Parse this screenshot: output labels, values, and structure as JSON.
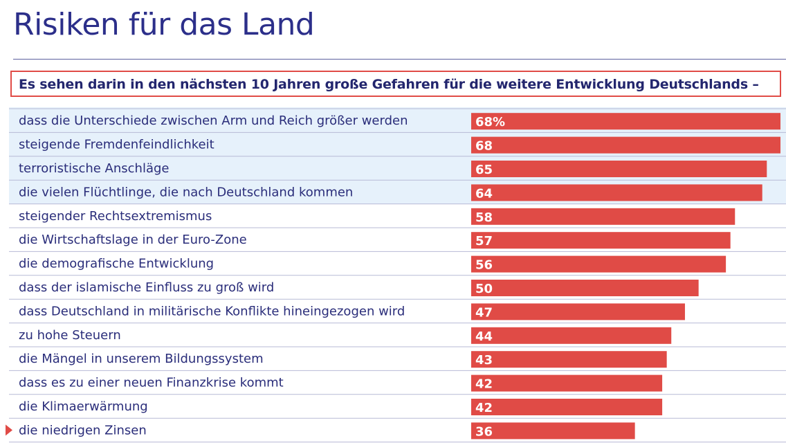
{
  "header": {
    "title": "Risiken für das Land",
    "subtitle": "Es sehen darin in den nächsten 10 Jahren große Gefahren für die weitere Entwicklung Deutschlands –"
  },
  "colors": {
    "bar": "#e04b46",
    "text": "#2a2d7a",
    "highlight": "#e6f1fb",
    "marker": "#e04b46"
  },
  "chart_data": {
    "type": "bar",
    "orientation": "horizontal",
    "title": "Risiken für das Land",
    "subtitle": "Es sehen darin in den nächsten 10 Jahren große Gefahren für die weitere Entwicklung Deutschlands –",
    "unit": "%",
    "xlim": [
      0,
      68
    ],
    "categories": [
      "dass die Unterschiede zwischen Arm und Reich größer werden",
      "steigende Fremdenfeindlichkeit",
      "terroristische Anschläge",
      "die vielen Flüchtlinge, die nach Deutschland kommen",
      "steigender Rechtsextremismus",
      "die Wirtschaftslage in der Euro-Zone",
      "die demografische Entwicklung",
      "dass der islamische Einfluss zu groß wird",
      "dass Deutschland in militärische Konflikte hineingezogen wird",
      "zu hohe Steuern",
      "die Mängel in unserem Bildungssystem",
      "dass es zu einer neuen Finanzkrise kommt",
      "die Klimaerwärmung",
      "die niedrigen Zinsen"
    ],
    "values": [
      68,
      68,
      65,
      64,
      58,
      57,
      56,
      50,
      47,
      44,
      43,
      42,
      42,
      36
    ],
    "value_labels": [
      "68%",
      "68",
      "65",
      "64",
      "58",
      "57",
      "56",
      "50",
      "47",
      "44",
      "43",
      "42",
      "42",
      "36"
    ],
    "highlighted_count": 4,
    "marked_index": 13
  }
}
